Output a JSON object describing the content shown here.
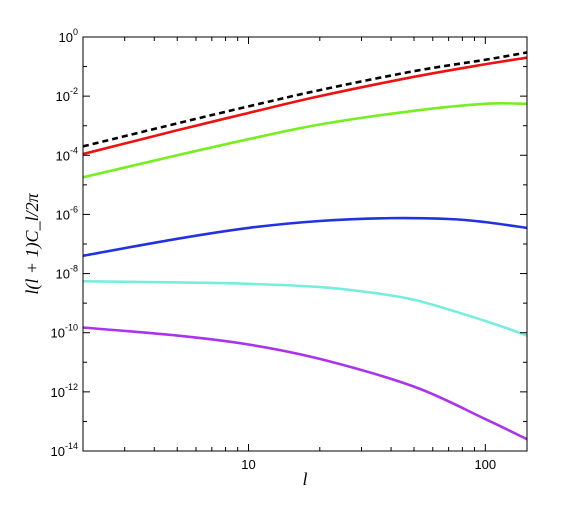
{
  "chart_data": {
    "type": "line",
    "title": "",
    "xlabel": "l",
    "ylabel": "l(l + 1)C_l/2π",
    "xscale": "log",
    "yscale": "log",
    "xlim": [
      2,
      150
    ],
    "ylim": [
      1e-14,
      1
    ],
    "grid": false,
    "x_ticks": [
      {
        "value": 10,
        "label": "10"
      },
      {
        "value": 100,
        "label": "100"
      }
    ],
    "y_ticks": [
      {
        "value": 1,
        "base": "10",
        "exp": "0"
      },
      {
        "value": 0.01,
        "base": "10",
        "exp": "-2"
      },
      {
        "value": 0.0001,
        "base": "10",
        "exp": "-4"
      },
      {
        "value": 1e-06,
        "base": "10",
        "exp": "-6"
      },
      {
        "value": 1e-08,
        "base": "10",
        "exp": "-8"
      },
      {
        "value": 1e-10,
        "base": "10",
        "exp": "-10"
      },
      {
        "value": 1e-12,
        "base": "10",
        "exp": "-12"
      },
      {
        "value": 1e-14,
        "base": "10",
        "exp": "-14"
      }
    ],
    "series": [
      {
        "color": "#000000",
        "dashed": true,
        "x": [
          2,
          5,
          10,
          20,
          50,
          100,
          150
        ],
        "y": [
          0.0002,
          0.0012,
          0.0045,
          0.016,
          0.07,
          0.17,
          0.3
        ]
      },
      {
        "color": "#ee1111",
        "dashed": false,
        "x": [
          2,
          5,
          10,
          20,
          50,
          100,
          150
        ],
        "y": [
          0.00011,
          0.0007,
          0.0027,
          0.01,
          0.045,
          0.12,
          0.2
        ]
      },
      {
        "color": "#77ee22",
        "dashed": false,
        "x": [
          2,
          5,
          10,
          20,
          50,
          100,
          150
        ],
        "y": [
          1.8e-05,
          0.0001,
          0.00035,
          0.0011,
          0.0032,
          0.0055,
          0.0055
        ]
      },
      {
        "color": "#2233dd",
        "dashed": false,
        "x": [
          2,
          5,
          10,
          20,
          40,
          70,
          100,
          150
        ],
        "y": [
          4e-08,
          1.5e-07,
          3.5e-07,
          6e-07,
          7.5e-07,
          7e-07,
          5.5e-07,
          3.5e-07
        ]
      },
      {
        "color": "#77eedd",
        "dashed": false,
        "x": [
          2,
          5,
          10,
          20,
          30,
          50,
          100,
          150
        ],
        "y": [
          5.5e-09,
          5e-09,
          4.5e-09,
          3.5e-09,
          2.5e-09,
          1.3e-09,
          2.5e-10,
          8e-11
        ]
      },
      {
        "color": "#aa33ee",
        "dashed": false,
        "x": [
          2,
          5,
          10,
          20,
          50,
          100,
          150
        ],
        "y": [
          1.5e-10,
          8e-11,
          4e-11,
          1.3e-11,
          1.5e-12,
          1.2e-13,
          2.5e-14
        ]
      }
    ]
  }
}
